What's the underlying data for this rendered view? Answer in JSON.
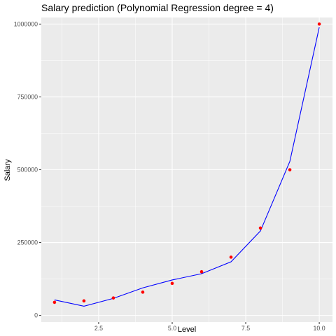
{
  "chart_data": {
    "type": "scatter",
    "title": "Salary prediction (Polynomial Regression degree = 4)",
    "xlabel": "Level",
    "ylabel": "Salary",
    "xlim": [
      0.55,
      10.45
    ],
    "ylim": [
      -22500,
      1022500
    ],
    "x_ticks": [
      2.5,
      5.0,
      7.5,
      10.0
    ],
    "x_tick_labels": [
      "2.5",
      "5.0",
      "7.5",
      "10.0"
    ],
    "y_ticks": [
      0,
      250000,
      500000,
      750000,
      1000000
    ],
    "y_tick_labels": [
      "0",
      "250000",
      "500000",
      "750000",
      "1000000"
    ],
    "grid": true,
    "series": [
      {
        "type": "scatter",
        "color": "#ff0000",
        "x": [
          1,
          2,
          3,
          4,
          5,
          6,
          7,
          8,
          9,
          10
        ],
        "y": [
          45000,
          50000,
          60000,
          80000,
          110000,
          150000,
          200000,
          300000,
          500000,
          1000000
        ]
      },
      {
        "type": "line",
        "color": "#0000ff",
        "x": [
          1,
          2,
          3,
          4,
          5,
          6,
          7,
          8,
          9,
          10
        ],
        "y": [
          53357,
          31760,
          58642,
          94632,
          121725,
          143275,
          184003,
          289994,
          528694,
          988916
        ]
      }
    ],
    "panel_color": "#ebebeb",
    "grid_color": "#ffffff"
  }
}
